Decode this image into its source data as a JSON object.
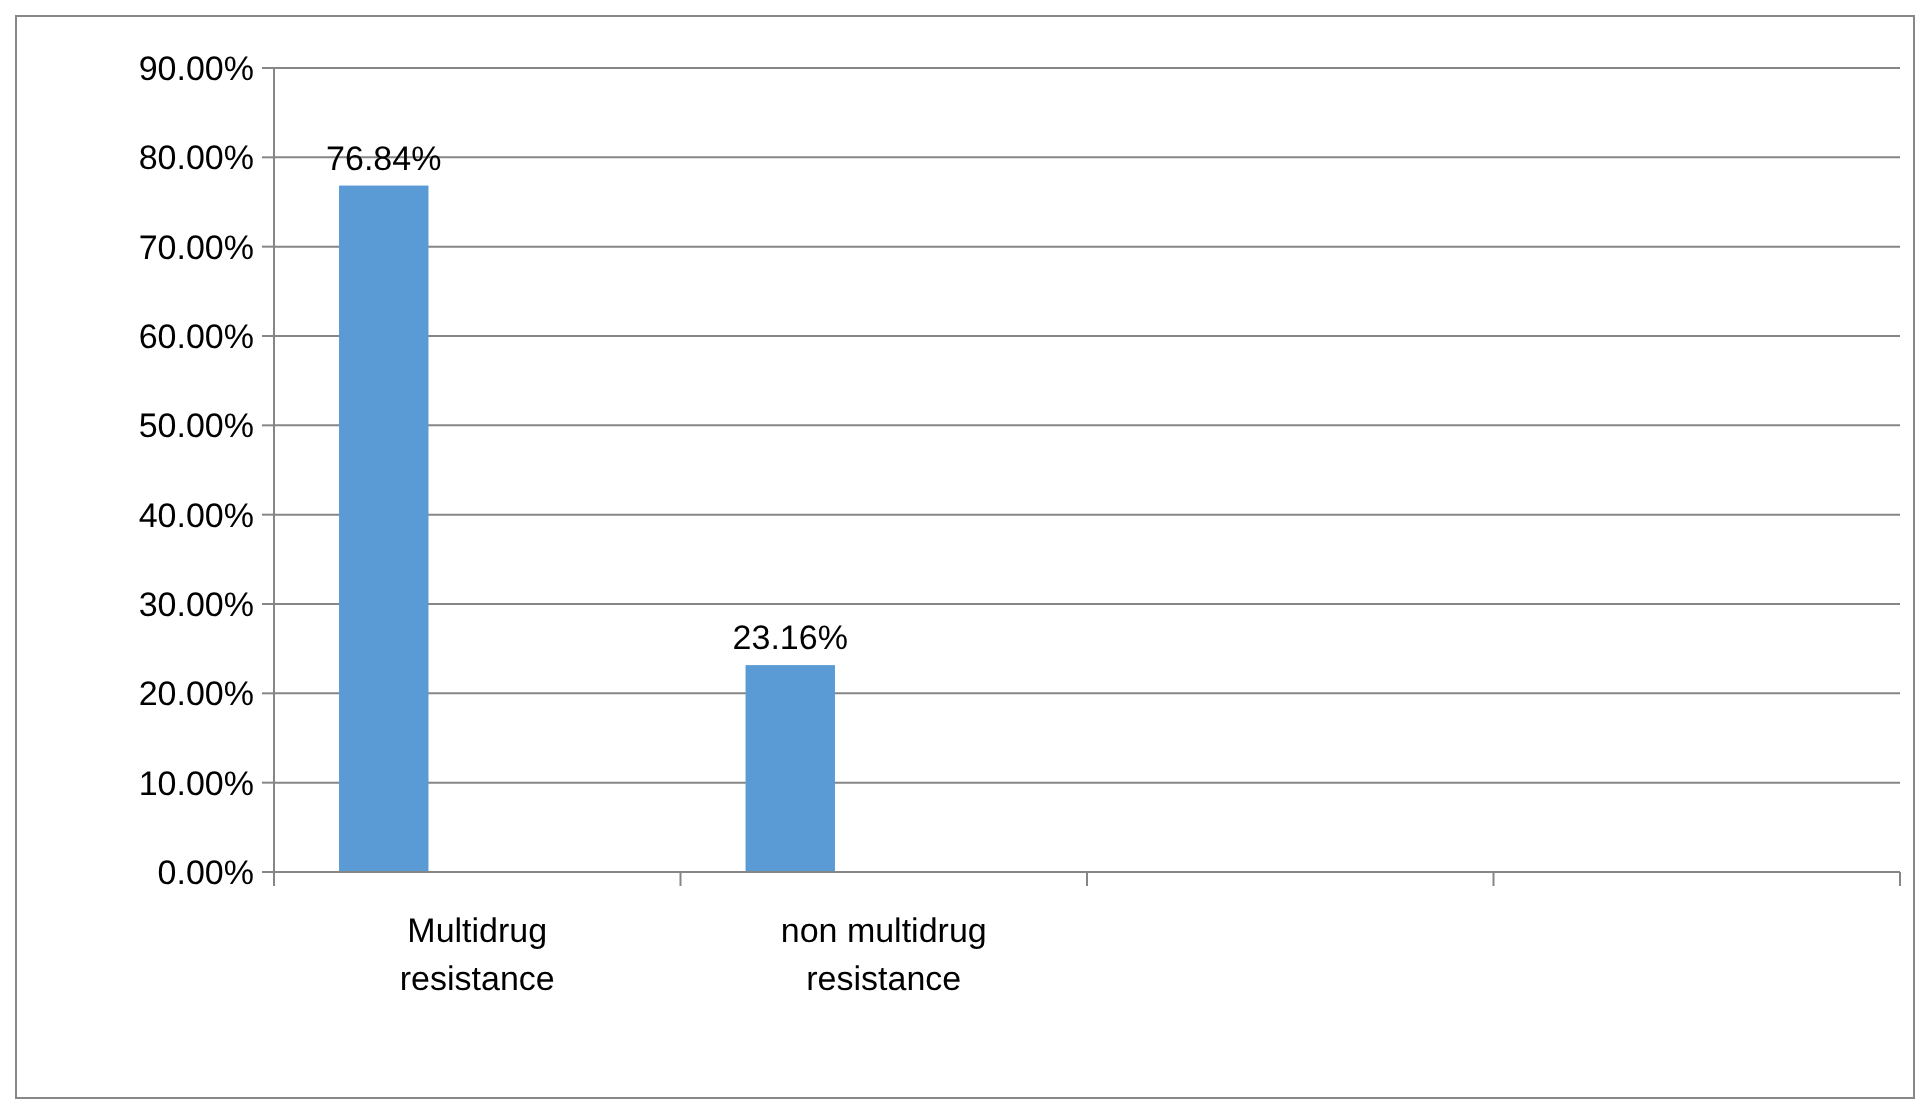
{
  "chart_data": {
    "type": "bar",
    "categories": [
      "Multidrug resistance",
      "non multidrug resistance",
      null,
      null
    ],
    "values": [
      76.84,
      23.16,
      null,
      null
    ],
    "color": "#5b9bd5",
    "value_labels": [
      "76.84%",
      "23.16%",
      null,
      null
    ],
    "ylim": [
      0,
      90
    ],
    "yticks": [
      {
        "value": 0,
        "label": "0.00%"
      },
      {
        "value": 10,
        "label": "10.00%"
      },
      {
        "value": 20,
        "label": "20.00%"
      },
      {
        "value": 30,
        "label": "30.00%"
      },
      {
        "value": 40,
        "label": "40.00%"
      },
      {
        "value": 50,
        "label": "50.00%"
      },
      {
        "value": 60,
        "label": "60.00%"
      },
      {
        "value": 70,
        "label": "70.00%"
      },
      {
        "value": 80,
        "label": "80.00%"
      },
      {
        "value": 90,
        "label": "90.00%"
      }
    ],
    "grid": "y"
  }
}
